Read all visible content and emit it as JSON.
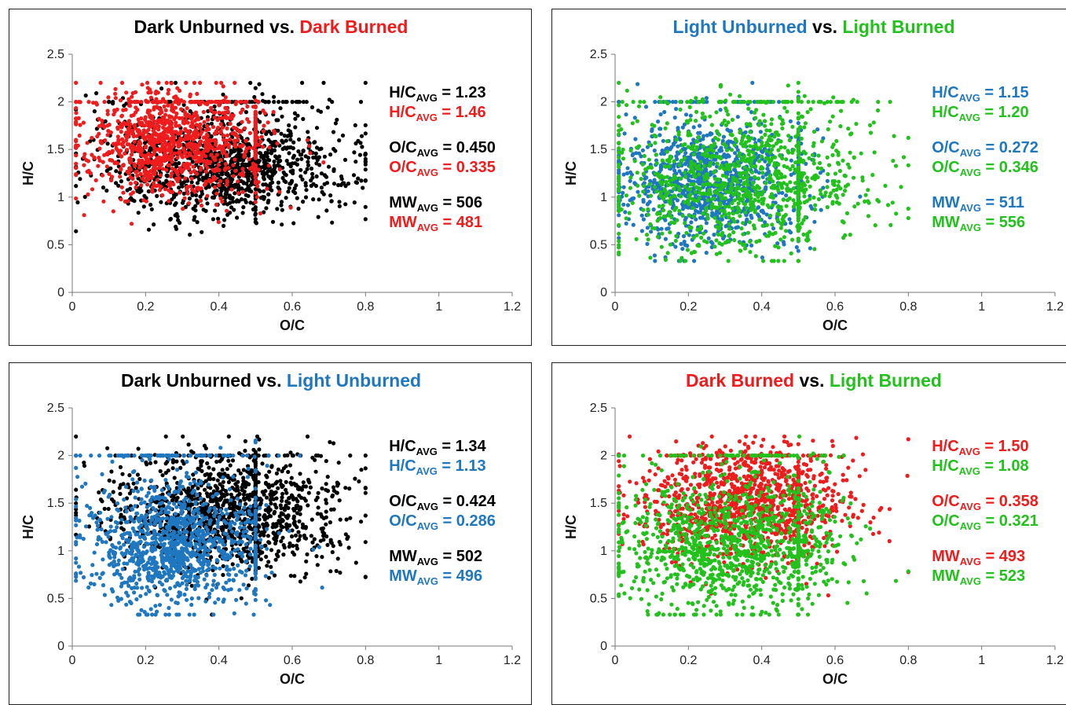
{
  "colors": {
    "black": "#000000",
    "red": "#ee1c1c",
    "blue": "#1f77c0",
    "green": "#22c11c"
  },
  "chart_data": [
    {
      "type": "scatter",
      "title_parts": [
        {
          "text": "Dark Unburned",
          "color": "black"
        },
        {
          "text": " vs. ",
          "color": "black"
        },
        {
          "text": "Dark Burned",
          "color": "red"
        }
      ],
      "xlabel": "O/C",
      "ylabel": "H/C",
      "xlim": [
        0,
        1.2
      ],
      "ylim": [
        0,
        2.5
      ],
      "xticks": [
        "0",
        "0.2",
        "0.4",
        "0.6",
        "0.8",
        "1",
        "1.2"
      ],
      "yticks": [
        "0",
        "0.5",
        "1",
        "1.5",
        "2",
        "2.5"
      ],
      "series": [
        {
          "color": "black",
          "cx": 0.42,
          "cy": 1.35,
          "sx": 0.17,
          "sy": 0.28,
          "n": 1300
        },
        {
          "color": "red",
          "cx": 0.27,
          "cy": 1.55,
          "sx": 0.12,
          "sy": 0.28,
          "n": 1100
        }
      ],
      "stats": [
        {
          "name": "H/C",
          "sub": "AVG",
          "value": "1.23",
          "color": "black"
        },
        {
          "name": "H/C",
          "sub": "AVG",
          "value": "1.46",
          "color": "red"
        },
        {
          "name": "O/C",
          "sub": "AVG",
          "value": "0.450",
          "color": "black"
        },
        {
          "name": "O/C",
          "sub": "AVG",
          "value": "0.335",
          "color": "red"
        },
        {
          "name": "MW",
          "sub": "AVG",
          "value": "506",
          "color": "black"
        },
        {
          "name": "MW",
          "sub": "AVG",
          "value": "481",
          "color": "red"
        }
      ]
    },
    {
      "type": "scatter",
      "title_parts": [
        {
          "text": "Light Unburned",
          "color": "blue"
        },
        {
          "text": " vs. ",
          "color": "black"
        },
        {
          "text": "Light Burned",
          "color": "green"
        }
      ],
      "xlabel": "O/C",
      "ylabel": "H/C",
      "xlim": [
        0,
        1.2
      ],
      "ylim": [
        0,
        2.5
      ],
      "xticks": [
        "0",
        "0.2",
        "0.4",
        "0.6",
        "0.8",
        "1",
        "1.2"
      ],
      "yticks": [
        "0",
        "0.5",
        "1",
        "1.5",
        "2",
        "2.5"
      ],
      "series": [
        {
          "color": "blue",
          "cx": 0.26,
          "cy": 1.15,
          "sx": 0.12,
          "sy": 0.32,
          "n": 1100
        },
        {
          "color": "green",
          "cx": 0.34,
          "cy": 1.2,
          "sx": 0.18,
          "sy": 0.38,
          "n": 1100
        }
      ],
      "stats": [
        {
          "name": "H/C",
          "sub": "AVG",
          "value": "1.15",
          "color": "blue"
        },
        {
          "name": "H/C",
          "sub": "AVG",
          "value": "1.20",
          "color": "green"
        },
        {
          "name": "O/C",
          "sub": "AVG",
          "value": "0.272",
          "color": "blue"
        },
        {
          "name": "O/C",
          "sub": "AVG",
          "value": "0.346",
          "color": "green"
        },
        {
          "name": "MW",
          "sub": "AVG",
          "value": "511",
          "color": "blue"
        },
        {
          "name": "MW",
          "sub": "AVG",
          "value": "556",
          "color": "green"
        }
      ]
    },
    {
      "type": "scatter",
      "title_parts": [
        {
          "text": "Dark Unburned",
          "color": "black"
        },
        {
          "text": " vs. ",
          "color": "black"
        },
        {
          "text": "Light Unburned",
          "color": "blue"
        }
      ],
      "xlabel": "O/C",
      "ylabel": "H/C",
      "xlim": [
        0,
        1.2
      ],
      "ylim": [
        0,
        2.5
      ],
      "xticks": [
        "0",
        "0.2",
        "0.4",
        "0.6",
        "0.8",
        "1",
        "1.2"
      ],
      "yticks": [
        "0",
        "0.5",
        "1",
        "1.5",
        "2",
        "2.5"
      ],
      "series": [
        {
          "color": "black",
          "cx": 0.42,
          "cy": 1.4,
          "sx": 0.16,
          "sy": 0.3,
          "n": 1300
        },
        {
          "color": "blue",
          "cx": 0.27,
          "cy": 1.05,
          "sx": 0.12,
          "sy": 0.33,
          "n": 1200
        }
      ],
      "stats": [
        {
          "name": "H/C",
          "sub": "AVG",
          "value": "1.34",
          "color": "black"
        },
        {
          "name": "H/C",
          "sub": "AVG",
          "value": "1.13",
          "color": "blue"
        },
        {
          "name": "O/C",
          "sub": "AVG",
          "value": "0.424",
          "color": "black"
        },
        {
          "name": "O/C",
          "sub": "AVG",
          "value": "0.286",
          "color": "blue"
        },
        {
          "name": "MW",
          "sub": "AVG",
          "value": "502",
          "color": "black"
        },
        {
          "name": "MW",
          "sub": "AVG",
          "value": "496",
          "color": "blue"
        }
      ]
    },
    {
      "type": "scatter",
      "title_parts": [
        {
          "text": "Dark Burned",
          "color": "red"
        },
        {
          "text": " vs. ",
          "color": "black"
        },
        {
          "text": "Light Burned",
          "color": "green"
        }
      ],
      "xlabel": "O/C",
      "ylabel": "H/C",
      "xlim": [
        0,
        1.2
      ],
      "ylim": [
        0,
        2.5
      ],
      "xticks": [
        "0",
        "0.2",
        "0.4",
        "0.6",
        "0.8",
        "1",
        "1.2"
      ],
      "yticks": [
        "0",
        "0.5",
        "1",
        "1.5",
        "2",
        "2.5"
      ],
      "series": [
        {
          "color": "red",
          "cx": 0.36,
          "cy": 1.5,
          "sx": 0.14,
          "sy": 0.3,
          "n": 1200
        },
        {
          "color": "green",
          "cx": 0.32,
          "cy": 1.05,
          "sx": 0.16,
          "sy": 0.36,
          "n": 1200
        }
      ],
      "stats": [
        {
          "name": "H/C",
          "sub": "AVG",
          "value": "1.50",
          "color": "red"
        },
        {
          "name": "H/C",
          "sub": "AVG",
          "value": "1.08",
          "color": "green"
        },
        {
          "name": "O/C",
          "sub": "AVG",
          "value": "0.358",
          "color": "red"
        },
        {
          "name": "O/C",
          "sub": "AVG",
          "value": "0.321",
          "color": "green"
        },
        {
          "name": "MW",
          "sub": "AVG",
          "value": "493",
          "color": "red"
        },
        {
          "name": "MW",
          "sub": "AVG",
          "value": "523",
          "color": "green"
        }
      ]
    }
  ]
}
